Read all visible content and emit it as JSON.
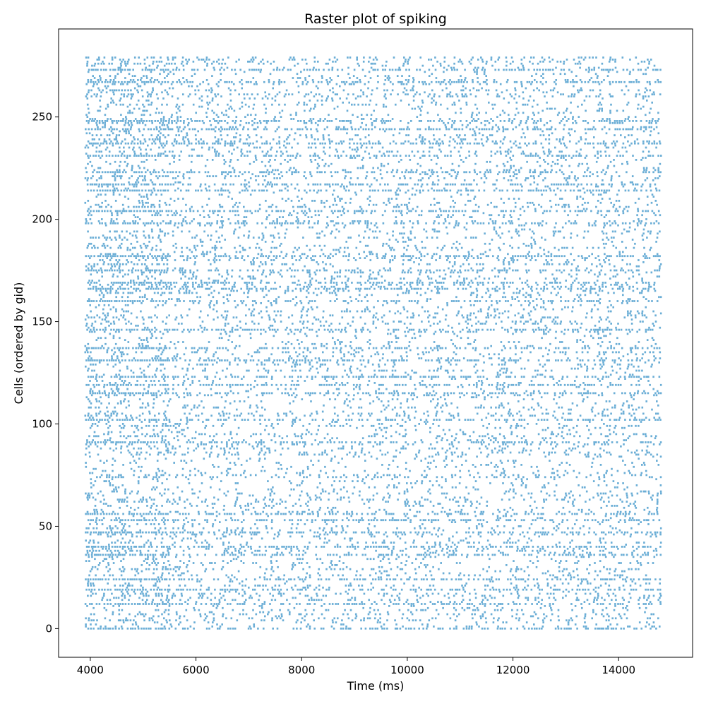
{
  "chart_data": {
    "type": "scatter",
    "title": "Raster plot of spiking",
    "xlabel": "Time (ms)",
    "ylabel": "Cells (ordered by gid)",
    "xlim": [
      3400,
      15400
    ],
    "ylim": [
      -14,
      293
    ],
    "xticks": [
      4000,
      6000,
      8000,
      10000,
      12000,
      14000
    ],
    "yticks": [
      0,
      50,
      100,
      150,
      200,
      250
    ],
    "grid": false,
    "marker_color": "#6baed6",
    "spike_time_range": [
      3900,
      14800
    ],
    "cell_range": [
      0,
      279
    ],
    "dense_rows": [
      0,
      12,
      19,
      24,
      36,
      40,
      47,
      53,
      56,
      91,
      102,
      115,
      119,
      123,
      131,
      137,
      146,
      160,
      166,
      169,
      175,
      182,
      198,
      204,
      214,
      217,
      223,
      231,
      237,
      244,
      248,
      267,
      273
    ]
  }
}
